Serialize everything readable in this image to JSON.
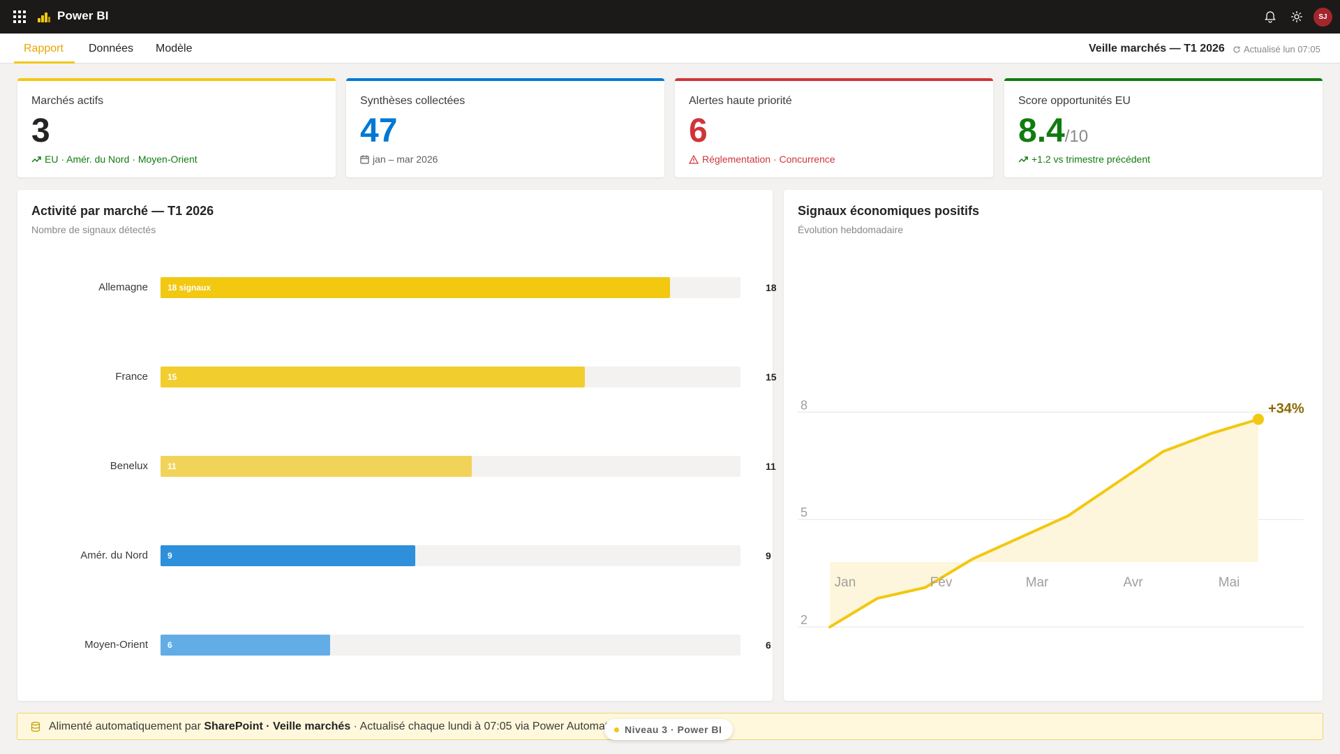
{
  "app": {
    "title": "Power BI",
    "avatar_initials": "SJ"
  },
  "nav": {
    "tabs": [
      {
        "label": "Rapport",
        "active": true
      },
      {
        "label": "Données",
        "active": false
      },
      {
        "label": "Modèle",
        "active": false
      }
    ],
    "report_title": "Veille marchés — T1 2026",
    "refresh_text": "Actualisé lun 07:05"
  },
  "kpis": [
    {
      "label": "Marchés actifs",
      "value": "3",
      "suffix": "",
      "footer": "EU · Amér. du Nord · Moyen-Orient",
      "footer_icon": "trend-up-icon",
      "accent": "#f2c811",
      "value_color": "#252423",
      "footer_color": "#107c10"
    },
    {
      "label": "Synthèses collectées",
      "value": "47",
      "suffix": "",
      "footer": "jan – mar 2026",
      "footer_icon": "calendar-icon",
      "accent": "#0078d4",
      "value_color": "#0078d4",
      "footer_color": "#605e5c"
    },
    {
      "label": "Alertes haute priorité",
      "value": "6",
      "suffix": "",
      "footer": "Réglementation · Concurrence",
      "footer_icon": "warning-icon",
      "accent": "#d13438",
      "value_color": "#d13438",
      "footer_color": "#d13438"
    },
    {
      "label": "Score opportunités EU",
      "value": "8.4",
      "suffix": "/10",
      "footer": "+1.2 vs trimestre précédent",
      "footer_icon": "trend-up-icon",
      "accent": "#107c10",
      "value_color": "#107c10",
      "footer_color": "#107c10"
    }
  ],
  "bar_panel": {
    "title": "Activité par marché — T1 2026",
    "subtitle": "Nombre de signaux détectés"
  },
  "line_panel": {
    "title": "Signaux économiques positifs",
    "subtitle": "Évolution hebdomadaire",
    "end_label": "+34%"
  },
  "chart_data": [
    {
      "type": "bar",
      "orientation": "horizontal",
      "categories": [
        "Allemagne",
        "France",
        "Benelux",
        "Amér. du Nord",
        "Moyen-Orient"
      ],
      "values": [
        18,
        15,
        11,
        9,
        6
      ],
      "inner_labels": [
        "18 signaux",
        "15",
        "11",
        "9",
        "6"
      ],
      "colors": [
        "#f2c811",
        "#f2cd2e",
        "#f2d35a",
        "#2e8fdb",
        "#62ade6"
      ],
      "xlim": [
        0,
        20.5
      ]
    },
    {
      "type": "area",
      "x_ticks": [
        "Jan",
        "Fév",
        "Mar",
        "Avr",
        "Mai"
      ],
      "y_ticks": [
        2,
        5,
        8
      ],
      "ylim": [
        0.5,
        9
      ],
      "x": [
        0,
        0.5,
        1,
        1.5,
        2,
        2.5,
        3,
        3.5,
        4,
        4.5
      ],
      "values": [
        2.0,
        2.8,
        3.1,
        3.9,
        4.5,
        5.1,
        6.0,
        6.9,
        7.4,
        7.8
      ],
      "line_color": "#f2c811",
      "fill_color": "#fdf6dc"
    }
  ],
  "banner": {
    "prefix": "Alimenté automatiquement par ",
    "source": "SharePoint · Veille marchés",
    "suffix": " · Actualisé chaque lundi à 07:05 via Power Automate"
  },
  "pill": {
    "label": "Niveau 3 · Power BI"
  }
}
